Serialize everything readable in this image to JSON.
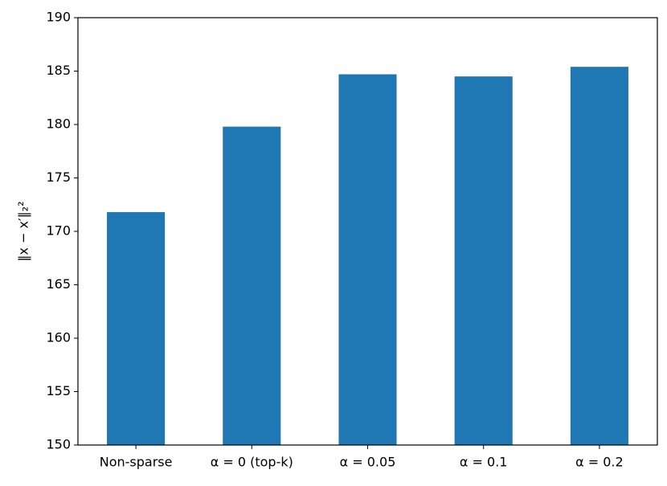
{
  "chart_data": {
    "type": "bar",
    "y_label": "‖x − x′‖₂²",
    "categories": [
      "Non-sparse",
      "α = 0 (top-k)",
      "α = 0.05",
      "α = 0.1",
      "α = 0.2"
    ],
    "values": [
      171.8,
      179.8,
      184.7,
      184.5,
      185.4
    ],
    "color": "#1f77b4",
    "ylim": [
      150,
      190
    ],
    "yticks": [
      150,
      155,
      160,
      165,
      170,
      175,
      180,
      185,
      190
    ],
    "grid": false
  }
}
